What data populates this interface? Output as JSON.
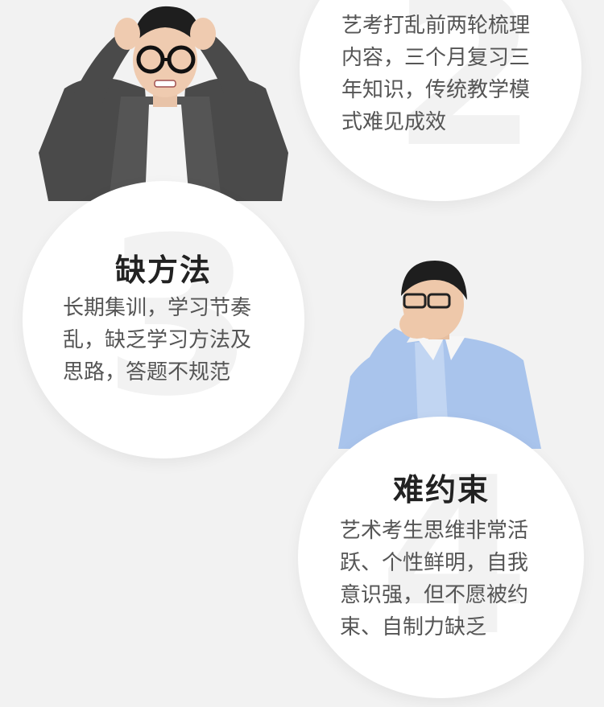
{
  "cards": [
    {
      "number": "2",
      "title": "",
      "lines": [
        "艺考打乱前两轮梳理",
        "内容，三个月复习三",
        "年知识，传统教学模",
        "式难见成效"
      ]
    },
    {
      "number": "3",
      "title": "缺方法",
      "lines": [
        "长期集训，学习节奏",
        "乱，缺乏学习方法及",
        "思路，答题不规范"
      ]
    },
    {
      "number": "4",
      "title": "难约束",
      "lines": [
        "艺术考生思维非常活",
        "跃、个性鲜明，自我",
        "意识强，但不愿被约",
        "束、自制力缺乏"
      ]
    }
  ],
  "colors": {
    "background": "#f2f2f2",
    "circle": "#ffffff",
    "title": "#222222",
    "text": "#555555"
  }
}
